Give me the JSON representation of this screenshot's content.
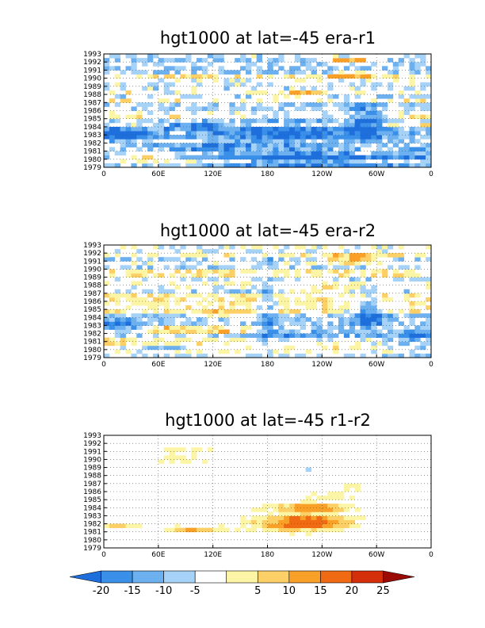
{
  "chart_data": [
    {
      "type": "heatmap",
      "title": "hgt1000 at lat=-45 era-r1",
      "x_ticks": [
        "0",
        "60E",
        "120E",
        "180",
        "120W",
        "60W",
        "0"
      ],
      "y_ticks": [
        "1979",
        "1980",
        "1981",
        "1982",
        "1983",
        "1984",
        "1985",
        "1986",
        "1987",
        "1988",
        "1989",
        "1990",
        "1991",
        "1992",
        "1993"
      ],
      "xlim": [
        0,
        360
      ],
      "ylim": [
        1979,
        1993
      ],
      "grid": true,
      "features": [
        {
          "lon": 100,
          "year": 1984.2,
          "dlon": 40,
          "dyear": 0.4,
          "level": -20
        },
        {
          "lon": 200,
          "year": 1983.0,
          "dlon": 90,
          "dyear": 2.5,
          "level": -15
        },
        {
          "lon": 290,
          "year": 1984.5,
          "dlon": 18,
          "dyear": 2.0,
          "level": -20
        },
        {
          "lon": 230,
          "year": 1979.8,
          "dlon": 110,
          "dyear": 1.3,
          "level": -15
        },
        {
          "lon": 50,
          "year": 1980.4,
          "dlon": 30,
          "dyear": 0.3,
          "level": 15
        },
        {
          "lon": 270,
          "year": 1992.2,
          "dlon": 25,
          "dyear": 0.3,
          "level": 20
        },
        {
          "lon": 270,
          "year": 1990.5,
          "dlon": 25,
          "dyear": 0.4,
          "level": 15
        },
        {
          "lon": 215,
          "year": 1988.0,
          "dlon": 25,
          "dyear": 0.3,
          "level": 15
        },
        {
          "lon": 100,
          "year": 1981.5,
          "dlon": 50,
          "dyear": 0.5,
          "level": -15
        },
        {
          "lon": 20,
          "year": 1983.0,
          "dlon": 35,
          "dyear": 1.5,
          "level": -15
        },
        {
          "lon": 340,
          "year": 1981.5,
          "dlon": 25,
          "dyear": 1.5,
          "level": -10
        }
      ]
    },
    {
      "type": "heatmap",
      "title": "hgt1000 at lat=-45 era-r2",
      "x_ticks": [
        "0",
        "60E",
        "120E",
        "180",
        "120W",
        "60W",
        "0"
      ],
      "y_ticks": [
        "1979",
        "1980",
        "1981",
        "1982",
        "1983",
        "1984",
        "1985",
        "1986",
        "1987",
        "1988",
        "1989",
        "1990",
        "1991",
        "1992",
        "1993"
      ],
      "xlim": [
        0,
        360
      ],
      "ylim": [
        1979,
        1993
      ],
      "grid": true,
      "features": [
        {
          "lon": 270,
          "year": 1991.2,
          "dlon": 35,
          "dyear": 0.5,
          "level": 15
        },
        {
          "lon": 290,
          "year": 1984.0,
          "dlon": 18,
          "dyear": 2.5,
          "level": -15
        },
        {
          "lon": 130,
          "year": 1984.5,
          "dlon": 40,
          "dyear": 0.3,
          "level": 15
        },
        {
          "lon": 100,
          "year": 1982.5,
          "dlon": 60,
          "dyear": 0.4,
          "level": 15
        },
        {
          "lon": 215,
          "year": 1982.0,
          "dlon": 50,
          "dyear": 1.2,
          "level": -10
        },
        {
          "lon": 340,
          "year": 1981.5,
          "dlon": 30,
          "dyear": 1.5,
          "level": -15
        },
        {
          "lon": 20,
          "year": 1983.0,
          "dlon": 30,
          "dyear": 1.0,
          "level": -15
        },
        {
          "lon": 180,
          "year": 1985.0,
          "dlon": 8,
          "dyear": 6.0,
          "level": -10
        },
        {
          "lon": 240,
          "year": 1987.5,
          "dlon": 40,
          "dyear": 0.3,
          "level": 15
        },
        {
          "lon": 60,
          "year": 1980.2,
          "dlon": 40,
          "dyear": 0.3,
          "level": -15
        }
      ]
    },
    {
      "type": "heatmap",
      "title": "hgt1000 at lat=-45 r1-r2",
      "x_ticks": [
        "0",
        "60E",
        "120E",
        "180",
        "120W",
        "60W",
        "0"
      ],
      "y_ticks": [
        "1979",
        "1980",
        "1981",
        "1982",
        "1983",
        "1984",
        "1985",
        "1986",
        "1987",
        "1988",
        "1989",
        "1990",
        "1991",
        "1992",
        "1993"
      ],
      "xlim": [
        0,
        360
      ],
      "ylim": [
        1979,
        1993
      ],
      "grid": true,
      "features": [
        {
          "lon": 220,
          "year": 1982.2,
          "dlon": 50,
          "dyear": 1.2,
          "level": 20
        },
        {
          "lon": 230,
          "year": 1984.0,
          "dlon": 40,
          "dyear": 0.5,
          "level": 15
        },
        {
          "lon": 250,
          "year": 1985.5,
          "dlon": 30,
          "dyear": 0.3,
          "level": 15
        },
        {
          "lon": 100,
          "year": 1981.2,
          "dlon": 40,
          "dyear": 0.3,
          "level": 15
        },
        {
          "lon": 20,
          "year": 1981.8,
          "dlon": 18,
          "dyear": 0.3,
          "level": 10
        },
        {
          "lon": 85,
          "year": 1990.5,
          "dlon": 25,
          "dyear": 1.5,
          "level": 5
        },
        {
          "lon": 270,
          "year": 1986.5,
          "dlon": 20,
          "dyear": 0.3,
          "level": 10
        }
      ]
    }
  ],
  "colorbar": {
    "ticks": [
      "-20",
      "-15",
      "-10",
      "-5",
      "5",
      "10",
      "15",
      "20",
      "25"
    ],
    "colors": [
      "#1e6fdc",
      "#3a90e8",
      "#6cb0f0",
      "#a6d2f7",
      "#ffffff",
      "#fdf5a6",
      "#fdd067",
      "#f9a028",
      "#ef6a12",
      "#d42e0a",
      "#9c0a05"
    ]
  },
  "colors": {
    "grid": "#555555",
    "frame": "#000000"
  }
}
